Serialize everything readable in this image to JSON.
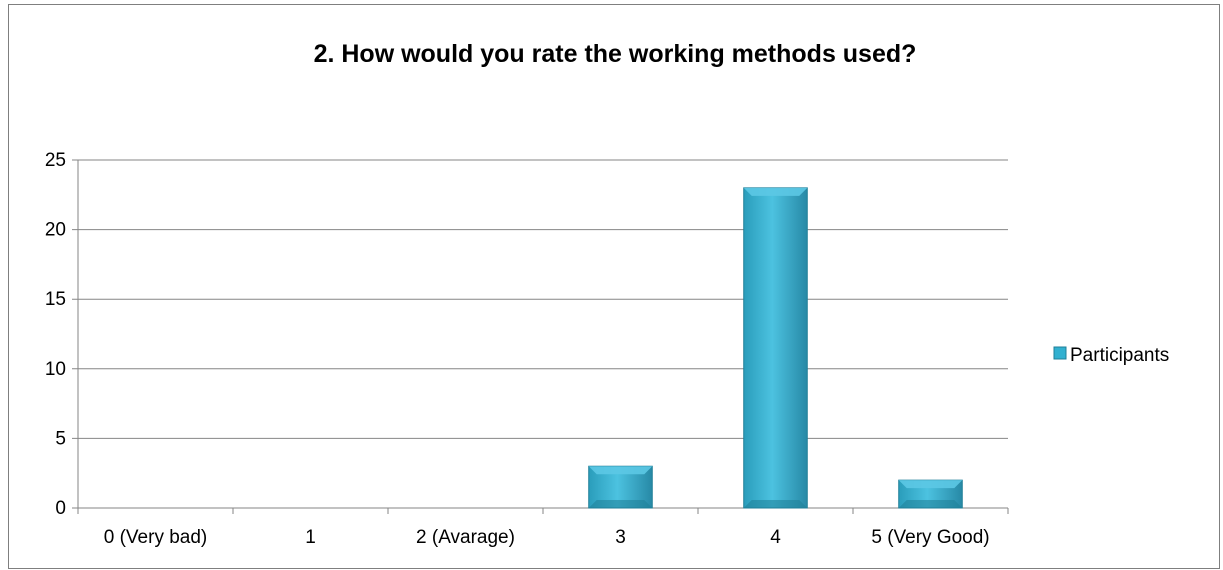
{
  "chart_data": {
    "type": "bar",
    "title": "2. How would you rate the working methods used?",
    "categories": [
      "0 (Very bad)",
      "1",
      "2 (Avarage)",
      "3",
      "4",
      "5 (Very Good)"
    ],
    "series": [
      {
        "name": "Participants",
        "values": [
          0,
          0,
          0,
          3,
          23,
          2
        ]
      }
    ],
    "ylim": [
      0,
      25
    ],
    "yticks": [
      0,
      5,
      10,
      15,
      20,
      25
    ],
    "grid": true,
    "legend_position": "right",
    "colors": {
      "bar": "#31b0d0",
      "bar_top": "#5cc8e4",
      "bar_dark": "#1f7f98",
      "grid": "#868686",
      "frame": "#7f7f7f"
    }
  }
}
